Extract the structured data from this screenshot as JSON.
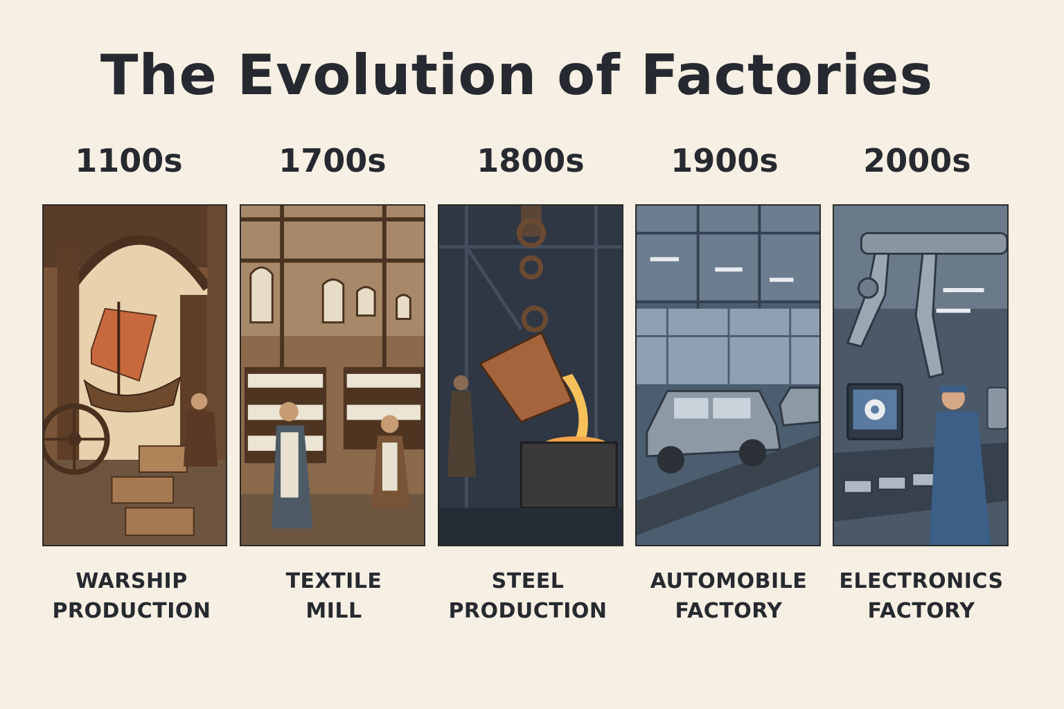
{
  "title": "The Evolution of Factories",
  "eras": [
    {
      "period": "1100s",
      "label_line1": "WARSHIP",
      "label_line2": "PRODUCTION",
      "scene": "warship-shipyard"
    },
    {
      "period": "1700s",
      "label_line1": "TEXTILE",
      "label_line2": "MILL",
      "scene": "textile-mill"
    },
    {
      "period": "1800s",
      "label_line1": "STEEL",
      "label_line2": "PRODUCTION",
      "scene": "steel-foundry"
    },
    {
      "period": "1900s",
      "label_line1": "AUTOMOBILE",
      "label_line2": "FACTORY",
      "scene": "car-assembly-line"
    },
    {
      "period": "2000s",
      "label_line1": "ELECTRONICS",
      "label_line2": "FACTORY",
      "scene": "robotic-electronics-line"
    }
  ],
  "colors": {
    "background": "#f6efe3",
    "text": "#262a30",
    "warm_brown": "#6b4a32",
    "sail_orange": "#c8693d",
    "molten_glow": "#f3a54a",
    "steel_blue": "#4d5d70"
  }
}
